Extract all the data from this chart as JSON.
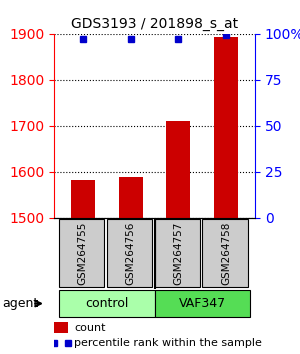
{
  "title": "GDS3193 / 201898_s_at",
  "samples": [
    "GSM264755",
    "GSM264756",
    "GSM264757",
    "GSM264758"
  ],
  "counts": [
    1583,
    1588,
    1710,
    1893
  ],
  "percentiles": [
    97,
    97,
    97,
    99
  ],
  "ylim_left": [
    1500,
    1900
  ],
  "ylim_right": [
    0,
    100
  ],
  "yticks_left": [
    1500,
    1600,
    1700,
    1800,
    1900
  ],
  "yticks_right": [
    0,
    25,
    50,
    75,
    100
  ],
  "yticklabels_right": [
    "0",
    "25",
    "50",
    "75",
    "100%"
  ],
  "bar_color": "#cc0000",
  "dot_color": "#0000cc",
  "groups": [
    {
      "label": "control",
      "samples": [
        0,
        1
      ],
      "color": "#aaffaa"
    },
    {
      "label": "VAF347",
      "samples": [
        2,
        3
      ],
      "color": "#55dd55"
    }
  ],
  "agent_label": "agent",
  "legend_count_label": "count",
  "legend_pct_label": "percentile rank within the sample",
  "grid_color": "#000000",
  "background_color": "#ffffff",
  "sample_box_color": "#cccccc"
}
